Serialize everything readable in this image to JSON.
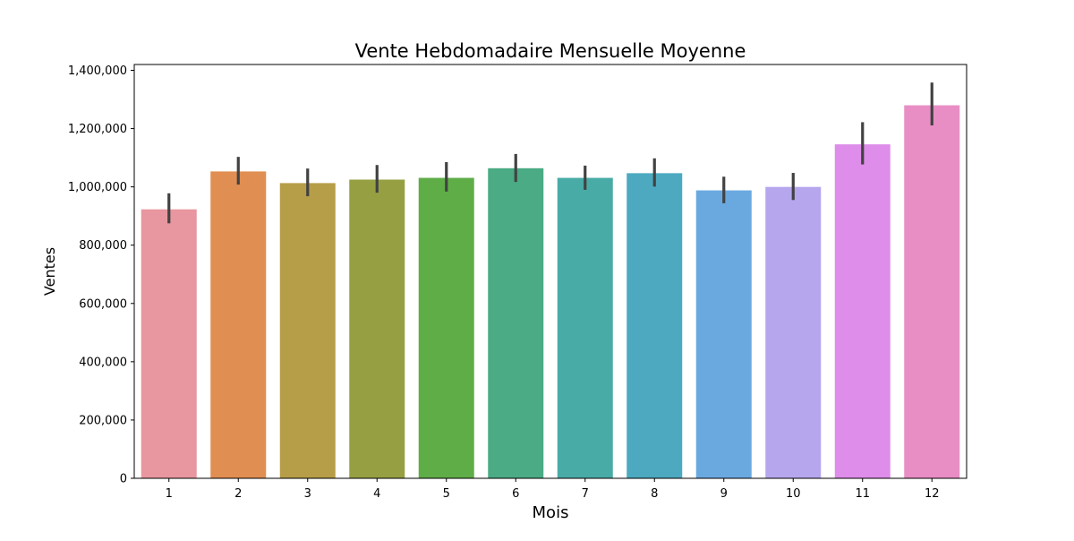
{
  "chart_data": {
    "type": "bar",
    "title": "Vente Hebdomadaire Mensuelle Moyenne",
    "xlabel": "Mois",
    "ylabel": "Ventes",
    "categories": [
      "1",
      "2",
      "3",
      "4",
      "5",
      "6",
      "7",
      "8",
      "9",
      "10",
      "11",
      "12"
    ],
    "values": [
      923000,
      1053000,
      1013000,
      1025000,
      1031000,
      1064000,
      1031000,
      1047000,
      988000,
      1000000,
      1146000,
      1280000
    ],
    "error_low": [
      875000,
      1008000,
      968000,
      980000,
      984000,
      1017000,
      990000,
      1001000,
      944000,
      955000,
      1077000,
      1211000
    ],
    "error_high": [
      978000,
      1103000,
      1063000,
      1075000,
      1085000,
      1113000,
      1073000,
      1098000,
      1035000,
      1048000,
      1222000,
      1358000
    ],
    "colors": [
      "#e8969f",
      "#e08e51",
      "#b69d47",
      "#96a042",
      "#5fad47",
      "#4aab84",
      "#49aba6",
      "#4ca9c0",
      "#6aa9e0",
      "#b6a6ee",
      "#de8dea",
      "#e88ec5"
    ],
    "yticks": [
      "0",
      "200,000",
      "400,000",
      "600,000",
      "800,000",
      "1,000,000",
      "1,200,000",
      "1,400,000"
    ],
    "ytick_values": [
      0,
      200000,
      400000,
      600000,
      800000,
      1000000,
      1200000,
      1400000
    ],
    "ylim": [
      0,
      1420000
    ],
    "grid": false,
    "legend": "none"
  }
}
